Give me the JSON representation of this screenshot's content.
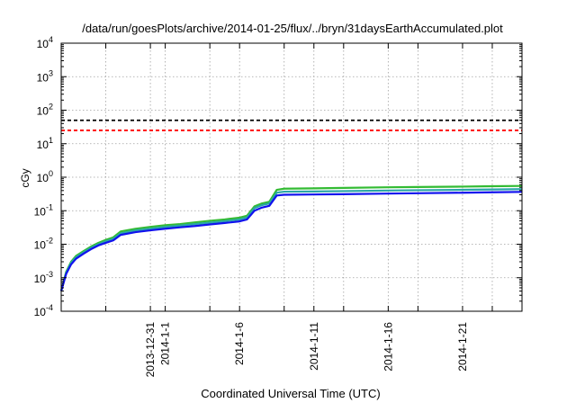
{
  "chart_data": {
    "type": "line",
    "title": "/data/run/goesPlots/archive/2014-01-25/flux/../bryn/31daysEarthAccumulated.plot",
    "xlabel": "Coordinated Universal Time (UTC)",
    "ylabel": "cGy",
    "y_scale": "log",
    "ylim": [
      0.0001,
      10000
    ],
    "xlim": [
      "2013-12-25",
      "2014-01-25"
    ],
    "grid": true,
    "y_ticks": [
      {
        "value": 0.0001,
        "base": "10",
        "exp": "-4"
      },
      {
        "value": 0.001,
        "base": "10",
        "exp": "-3"
      },
      {
        "value": 0.01,
        "base": "10",
        "exp": "-2"
      },
      {
        "value": 0.1,
        "base": "10",
        "exp": "-1"
      },
      {
        "value": 1,
        "base": "10",
        "exp": "0"
      },
      {
        "value": 10,
        "base": "10",
        "exp": "1"
      },
      {
        "value": 100,
        "base": "10",
        "exp": "2"
      },
      {
        "value": 1000,
        "base": "10",
        "exp": "3"
      },
      {
        "value": 10000,
        "base": "10",
        "exp": "4"
      }
    ],
    "x_ticks": [
      {
        "date": "2013-12-28",
        "label": ""
      },
      {
        "date": "2013-12-31",
        "label": "2013-12-31"
      },
      {
        "date": "2014-01-01",
        "label": "2014-1-1"
      },
      {
        "date": "2014-01-04",
        "label": ""
      },
      {
        "date": "2014-01-06",
        "label": "2014-1-6"
      },
      {
        "date": "2014-01-09",
        "label": ""
      },
      {
        "date": "2014-01-11",
        "label": "2014-1-11"
      },
      {
        "date": "2014-01-13",
        "label": ""
      },
      {
        "date": "2014-01-16",
        "label": "2014-1-16"
      },
      {
        "date": "2014-01-18",
        "label": ""
      },
      {
        "date": "2014-01-21",
        "label": "2014-1-21"
      },
      {
        "date": "2014-01-23",
        "label": ""
      }
    ],
    "reference_lines": [
      {
        "value": 50,
        "color": "#000000",
        "style": "dashed"
      },
      {
        "value": 25,
        "color": "#ff0000",
        "style": "dashed"
      }
    ],
    "series": [
      {
        "color": "#33bb33",
        "points": [
          [
            "2013-12-25",
            0.0004
          ],
          [
            "2013-12-25T08:00",
            0.0015
          ],
          [
            "2013-12-25T16:00",
            0.003
          ],
          [
            "2013-12-26",
            0.0045
          ],
          [
            "2013-12-26T12:00",
            0.0062
          ],
          [
            "2013-12-27",
            0.0085
          ],
          [
            "2013-12-27T12:00",
            0.011
          ],
          [
            "2013-12-28",
            0.0135
          ],
          [
            "2013-12-28T12:00",
            0.016
          ],
          [
            "2013-12-29",
            0.024
          ],
          [
            "2013-12-30",
            0.029
          ],
          [
            "2013-12-31",
            0.033
          ],
          [
            "2014-01-01",
            0.037
          ],
          [
            "2014-01-02",
            0.04
          ],
          [
            "2014-01-03",
            0.045
          ],
          [
            "2014-01-04",
            0.05
          ],
          [
            "2014-01-05",
            0.055
          ],
          [
            "2014-01-06",
            0.062
          ],
          [
            "2014-01-06T12:00",
            0.071
          ],
          [
            "2014-01-07",
            0.135
          ],
          [
            "2014-01-07T12:00",
            0.165
          ],
          [
            "2014-01-08",
            0.185
          ],
          [
            "2014-01-08T12:00",
            0.42
          ],
          [
            "2014-01-09",
            0.455
          ],
          [
            "2014-01-11",
            0.465
          ],
          [
            "2014-01-13",
            0.48
          ],
          [
            "2014-01-16",
            0.5
          ],
          [
            "2014-01-18",
            0.51
          ],
          [
            "2014-01-21",
            0.525
          ],
          [
            "2014-01-23",
            0.54
          ],
          [
            "2014-01-25",
            0.55
          ]
        ]
      },
      {
        "color": "#2aa6a6",
        "points": [
          [
            "2013-12-25",
            0.0004
          ],
          [
            "2013-12-25T08:00",
            0.0014
          ],
          [
            "2013-12-25T16:00",
            0.0028
          ],
          [
            "2013-12-26",
            0.0041
          ],
          [
            "2013-12-26T12:00",
            0.0057
          ],
          [
            "2013-12-27",
            0.0078
          ],
          [
            "2013-12-27T12:00",
            0.01
          ],
          [
            "2013-12-28",
            0.0122
          ],
          [
            "2013-12-28T12:00",
            0.0145
          ],
          [
            "2013-12-29",
            0.021
          ],
          [
            "2013-12-30",
            0.026
          ],
          [
            "2013-12-31",
            0.029
          ],
          [
            "2014-01-01",
            0.033
          ],
          [
            "2014-01-02",
            0.036
          ],
          [
            "2014-01-03",
            0.04
          ],
          [
            "2014-01-04",
            0.044
          ],
          [
            "2014-01-05",
            0.049
          ],
          [
            "2014-01-06",
            0.055
          ],
          [
            "2014-01-06T12:00",
            0.063
          ],
          [
            "2014-01-07",
            0.12
          ],
          [
            "2014-01-07T12:00",
            0.147
          ],
          [
            "2014-01-08",
            0.165
          ],
          [
            "2014-01-08T12:00",
            0.345
          ],
          [
            "2014-01-09",
            0.37
          ],
          [
            "2014-01-11",
            0.375
          ],
          [
            "2014-01-13",
            0.385
          ],
          [
            "2014-01-16",
            0.4
          ],
          [
            "2014-01-18",
            0.41
          ],
          [
            "2014-01-21",
            0.42
          ],
          [
            "2014-01-23",
            0.43
          ],
          [
            "2014-01-25",
            0.44
          ]
        ]
      },
      {
        "color": "#1111ee",
        "points": [
          [
            "2013-12-25",
            0.0004
          ],
          [
            "2013-12-25T08:00",
            0.0013
          ],
          [
            "2013-12-25T16:00",
            0.0025
          ],
          [
            "2013-12-26",
            0.0037
          ],
          [
            "2013-12-26T12:00",
            0.0052
          ],
          [
            "2013-12-27",
            0.0071
          ],
          [
            "2013-12-27T12:00",
            0.0092
          ],
          [
            "2013-12-28",
            0.011
          ],
          [
            "2013-12-28T12:00",
            0.013
          ],
          [
            "2013-12-29",
            0.019
          ],
          [
            "2013-12-30",
            0.023
          ],
          [
            "2013-12-31",
            0.026
          ],
          [
            "2014-01-01",
            0.029
          ],
          [
            "2014-01-02",
            0.032
          ],
          [
            "2014-01-03",
            0.035
          ],
          [
            "2014-01-04",
            0.039
          ],
          [
            "2014-01-05",
            0.043
          ],
          [
            "2014-01-06",
            0.048
          ],
          [
            "2014-01-06T12:00",
            0.055
          ],
          [
            "2014-01-07",
            0.1
          ],
          [
            "2014-01-07T12:00",
            0.124
          ],
          [
            "2014-01-08",
            0.14
          ],
          [
            "2014-01-08T12:00",
            0.285
          ],
          [
            "2014-01-09",
            0.3
          ],
          [
            "2014-01-11",
            0.305
          ],
          [
            "2014-01-13",
            0.312
          ],
          [
            "2014-01-16",
            0.325
          ],
          [
            "2014-01-18",
            0.333
          ],
          [
            "2014-01-21",
            0.345
          ],
          [
            "2014-01-23",
            0.355
          ],
          [
            "2014-01-25",
            0.365
          ]
        ]
      }
    ]
  }
}
